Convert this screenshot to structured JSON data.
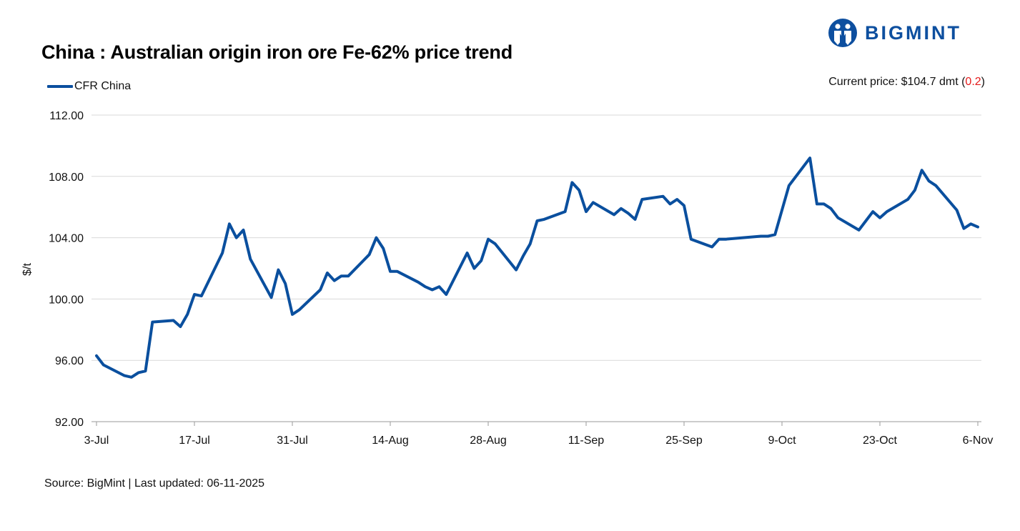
{
  "header": {
    "title": "China : Australian origin iron ore Fe-62% price trend"
  },
  "brand": {
    "name": "BIGMINT",
    "color": "#0d4f9f"
  },
  "price_info": {
    "prefix": "Current price: $104.7 dmt (",
    "change": "0.2",
    "suffix": ")",
    "change_color": "#e41a1a"
  },
  "footer": {
    "source": "Source: BigMint | Last updated: 06-11-2025"
  },
  "chart_data": {
    "type": "line",
    "xlabel": "",
    "ylabel": "$/t",
    "ylim": [
      92,
      112
    ],
    "yticks": [
      "92.00",
      "96.00",
      "100.00",
      "104.00",
      "108.00",
      "112.00"
    ],
    "xlim": [
      "2025-07-03",
      "2025-11-06"
    ],
    "xticks": [
      "3-Jul",
      "17-Jul",
      "31-Jul",
      "14-Aug",
      "28-Aug",
      "11-Sep",
      "25-Sep",
      "9-Oct",
      "23-Oct",
      "6-Nov"
    ],
    "grid": true,
    "legend_position": "top-left",
    "series": [
      {
        "name": "CFR China",
        "color": "#0a4f9e",
        "x": [
          "2025-07-03",
          "2025-07-04",
          "2025-07-07",
          "2025-07-08",
          "2025-07-09",
          "2025-07-10",
          "2025-07-11",
          "2025-07-14",
          "2025-07-15",
          "2025-07-16",
          "2025-07-17",
          "2025-07-18",
          "2025-07-21",
          "2025-07-22",
          "2025-07-23",
          "2025-07-24",
          "2025-07-25",
          "2025-07-28",
          "2025-07-29",
          "2025-07-30",
          "2025-07-31",
          "2025-08-01",
          "2025-08-04",
          "2025-08-05",
          "2025-08-06",
          "2025-08-07",
          "2025-08-08",
          "2025-08-11",
          "2025-08-12",
          "2025-08-13",
          "2025-08-14",
          "2025-08-15",
          "2025-08-18",
          "2025-08-19",
          "2025-08-20",
          "2025-08-21",
          "2025-08-22",
          "2025-08-25",
          "2025-08-26",
          "2025-08-27",
          "2025-08-28",
          "2025-08-29",
          "2025-09-01",
          "2025-09-02",
          "2025-09-03",
          "2025-09-04",
          "2025-09-05",
          "2025-09-08",
          "2025-09-09",
          "2025-09-10",
          "2025-09-11",
          "2025-09-12",
          "2025-09-15",
          "2025-09-16",
          "2025-09-17",
          "2025-09-18",
          "2025-09-19",
          "2025-09-22",
          "2025-09-23",
          "2025-09-24",
          "2025-09-25",
          "2025-09-26",
          "2025-09-29",
          "2025-09-30",
          "2025-10-01",
          "2025-10-06",
          "2025-10-07",
          "2025-10-08",
          "2025-10-09",
          "2025-10-10",
          "2025-10-13",
          "2025-10-14",
          "2025-10-15",
          "2025-10-16",
          "2025-10-17",
          "2025-10-20",
          "2025-10-21",
          "2025-10-22",
          "2025-10-23",
          "2025-10-24",
          "2025-10-27",
          "2025-10-28",
          "2025-10-29",
          "2025-10-30",
          "2025-10-31",
          "2025-11-03",
          "2025-11-04",
          "2025-11-05",
          "2025-11-06"
        ],
        "y": [
          96.3,
          95.7,
          95.0,
          94.9,
          95.2,
          95.3,
          98.5,
          98.6,
          98.2,
          99.0,
          100.3,
          100.2,
          103.0,
          104.9,
          104.0,
          104.5,
          102.6,
          100.1,
          101.9,
          101.0,
          99.0,
          99.3,
          100.6,
          101.7,
          101.2,
          101.5,
          101.5,
          102.9,
          104.0,
          103.3,
          101.8,
          101.8,
          101.1,
          100.8,
          100.6,
          100.8,
          100.3,
          103.0,
          102.0,
          102.5,
          103.9,
          103.6,
          101.9,
          102.8,
          103.6,
          105.1,
          105.2,
          105.7,
          107.6,
          107.1,
          105.7,
          106.3,
          105.5,
          105.9,
          105.6,
          105.2,
          106.5,
          106.7,
          106.2,
          106.5,
          106.1,
          103.9,
          103.4,
          103.9,
          103.9,
          104.1,
          104.1,
          104.2,
          105.8,
          107.4,
          109.2,
          106.2,
          106.2,
          105.9,
          105.3,
          104.5,
          105.1,
          105.7,
          105.3,
          105.7,
          106.5,
          107.1,
          108.4,
          107.7,
          107.4,
          105.8,
          104.6,
          104.9,
          104.7
        ]
      }
    ]
  }
}
